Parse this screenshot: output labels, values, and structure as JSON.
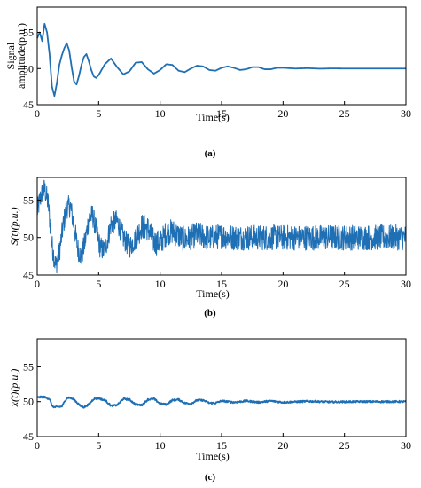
{
  "chart_data": [
    {
      "type": "line",
      "panel_label": "(a)",
      "xlabel": "Time(s)",
      "ylabel_lines": [
        "Signal",
        "amplitude(p.u.)"
      ],
      "xlim": [
        0,
        30
      ],
      "ylim": [
        45,
        58.5
      ],
      "xticks": [
        0,
        5,
        10,
        15,
        20,
        25,
        30
      ],
      "xtick_labels": [
        "0",
        "5",
        "10",
        "15",
        "20",
        "25",
        "30"
      ],
      "yticks": [
        45,
        50,
        55
      ],
      "ytick_labels": [
        "45",
        "50",
        "55"
      ],
      "line_color": "#1f6fb5",
      "series": [
        {
          "x": [
            0,
            0.2,
            0.4,
            0.6,
            0.8,
            1.0,
            1.2,
            1.4,
            1.6,
            1.8,
            2.0,
            2.2,
            2.4,
            2.6,
            2.8,
            3.0,
            3.2,
            3.4,
            3.6,
            3.8,
            4.0,
            4.2,
            4.4,
            4.6,
            4.8,
            5.0,
            5.5,
            6.0,
            6.5,
            7.0,
            7.5,
            8.0,
            8.5,
            9.0,
            9.5,
            10.0,
            10.5,
            11.0,
            11.5,
            12.0,
            12.5,
            13.0,
            13.5,
            14.0,
            14.5,
            15.0,
            15.5,
            16.0,
            16.5,
            17.0,
            17.5,
            18.0,
            18.5,
            19.0,
            19.5,
            20.0,
            21,
            22,
            23,
            24,
            25,
            26,
            27,
            28,
            29,
            30
          ],
          "y": [
            54.2,
            55.0,
            53.8,
            56.2,
            55.0,
            52.0,
            47.5,
            46.2,
            48.0,
            50.5,
            51.8,
            52.8,
            53.5,
            52.5,
            50.2,
            48.2,
            47.8,
            49.0,
            50.5,
            51.6,
            52.0,
            51.0,
            49.8,
            48.9,
            48.7,
            49.1,
            50.6,
            51.4,
            50.2,
            49.2,
            49.6,
            50.8,
            50.9,
            49.9,
            49.3,
            49.8,
            50.6,
            50.5,
            49.7,
            49.5,
            50.0,
            50.4,
            50.3,
            49.8,
            49.7,
            50.1,
            50.3,
            50.1,
            49.8,
            49.9,
            50.2,
            50.2,
            49.9,
            49.9,
            50.1,
            50.1,
            50.0,
            50.05,
            49.98,
            50.02,
            50.0,
            50.0,
            50.0,
            50.0,
            50.0,
            50.0
          ]
        }
      ]
    },
    {
      "type": "line",
      "panel_label": "(b)",
      "xlabel": "Time(s)",
      "ylabel": "S(t)(p.u.)",
      "xlim": [
        0,
        30
      ],
      "ylim": [
        45,
        58
      ],
      "xticks": [
        0,
        5,
        10,
        15,
        20,
        25,
        30
      ],
      "xtick_labels": [
        "0",
        "5",
        "10",
        "15",
        "20",
        "25",
        "30"
      ],
      "yticks": [
        45,
        50,
        55
      ],
      "ytick_labels": [
        "45",
        "50",
        "55"
      ],
      "line_color": "#1f6fb5",
      "series": [
        {
          "x": [
            0,
            0.3,
            0.6,
            0.9,
            1.2,
            1.5,
            1.8,
            2.1,
            2.4,
            2.7,
            3.0,
            3.3,
            3.6,
            3.9,
            4.2,
            4.5,
            4.8,
            5.1,
            5.4,
            5.7,
            6.0,
            6.5,
            7.0,
            7.5,
            8.0,
            8.5,
            9.0,
            9.5,
            10.0,
            10.5,
            11.0,
            12,
            13,
            14,
            15,
            16,
            18,
            20,
            22,
            24,
            26,
            28,
            30
          ],
          "y": [
            53.5,
            55.5,
            56.5,
            54.5,
            49.0,
            46.2,
            48.0,
            51.5,
            54.0,
            54.2,
            51.5,
            48.5,
            47.5,
            49.5,
            52.5,
            53.0,
            51.0,
            48.8,
            48.2,
            49.5,
            51.8,
            52.2,
            50.0,
            48.7,
            49.8,
            51.5,
            51.2,
            49.4,
            49.3,
            50.6,
            50.8,
            49.7,
            50.4,
            49.9,
            50.2,
            50.0,
            50.0,
            50.0,
            50.0,
            50.0,
            50.0,
            50.0,
            50.0
          ]
        }
      ]
    },
    {
      "type": "line",
      "panel_label": "(c)",
      "xlabel": "Time(s)",
      "ylabel": "x(t)(p.u.)",
      "xlim": [
        0,
        30
      ],
      "ylim": [
        45,
        59
      ],
      "xticks": [
        0,
        5,
        10,
        15,
        20,
        25,
        30
      ],
      "xtick_labels": [
        "0",
        "5",
        "10",
        "15",
        "20",
        "25",
        "30"
      ],
      "yticks": [
        45,
        50,
        55
      ],
      "ytick_labels": [
        "45",
        "50",
        "55"
      ],
      "line_color": "#1f6fb5",
      "series": [
        {
          "x": [
            0,
            0.5,
            1.0,
            1.2,
            1.4,
            2.0,
            2.4,
            2.6,
            3.0,
            3.5,
            3.8,
            4.2,
            4.6,
            5.0,
            5.6,
            6.0,
            6.5,
            7.0,
            7.5,
            8.0,
            8.5,
            9.0,
            9.5,
            10.0,
            10.5,
            11.0,
            11.5,
            12.0,
            12.5,
            13.0,
            13.5,
            14.0,
            14.5,
            15.0,
            16,
            17,
            18,
            19,
            20,
            22,
            24,
            26,
            28,
            30
          ],
          "y": [
            50.6,
            50.7,
            50.4,
            49.4,
            49.2,
            49.3,
            50.5,
            50.6,
            50.3,
            49.4,
            49.2,
            49.6,
            50.4,
            50.5,
            50.1,
            49.4,
            49.5,
            50.4,
            50.3,
            49.6,
            49.5,
            50.3,
            50.4,
            49.7,
            49.6,
            50.2,
            50.3,
            49.8,
            49.7,
            50.2,
            50.2,
            49.8,
            49.8,
            50.1,
            49.9,
            50.1,
            49.9,
            50.1,
            49.9,
            50.05,
            49.95,
            50.0,
            50.0,
            50.0
          ]
        }
      ]
    }
  ]
}
